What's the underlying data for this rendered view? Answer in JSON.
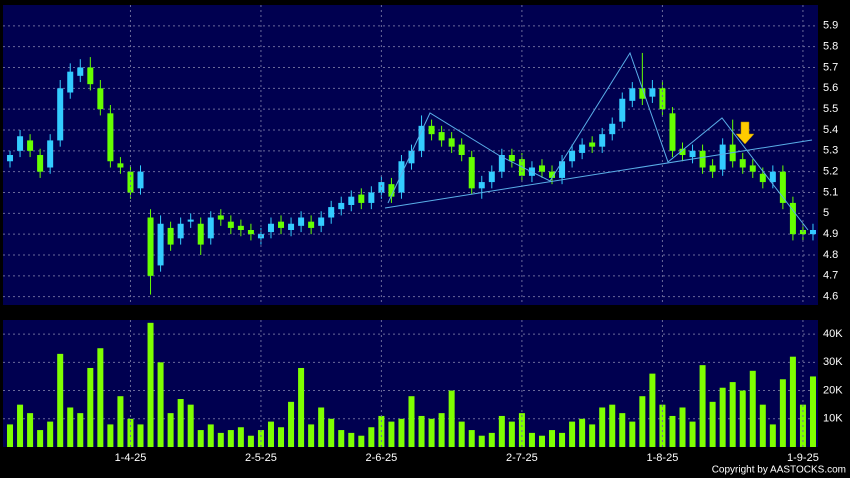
{
  "chart_data": [
    {
      "type": "candlestick",
      "up_color": "#33ccff",
      "down_color": "#66ff00",
      "open": [
        5.25,
        5.3,
        5.35,
        5.28,
        5.22,
        5.35,
        5.58,
        5.66,
        5.7,
        5.6,
        5.48,
        5.24,
        5.2,
        5.12,
        4.98,
        4.75,
        4.93,
        4.88,
        4.96,
        4.95,
        4.88,
        4.99,
        4.96,
        4.94,
        4.92,
        4.88,
        4.91,
        4.96,
        4.92,
        4.94,
        4.96,
        4.94,
        4.98,
        5.02,
        5.04,
        5.09,
        5.05,
        5.1,
        5.14,
        5.1,
        5.24,
        5.3,
        5.42,
        5.39,
        5.36,
        5.33,
        5.27,
        5.12,
        5.15,
        5.2,
        5.28,
        5.26,
        5.18,
        5.23,
        5.2,
        5.17,
        5.25,
        5.29,
        5.34,
        5.32,
        5.38,
        5.44,
        5.54,
        5.6,
        5.56,
        5.6,
        5.48,
        5.31,
        5.27,
        5.3,
        5.23,
        5.21,
        5.33,
        5.26,
        5.23,
        5.19,
        5.15,
        5.2,
        5.05,
        4.92,
        4.9
      ],
      "high": [
        5.3,
        5.4,
        5.38,
        5.31,
        5.38,
        5.64,
        5.72,
        5.74,
        5.75,
        5.64,
        5.52,
        5.27,
        5.23,
        5.23,
        5.02,
        4.99,
        4.96,
        4.98,
        5.0,
        4.98,
        5.01,
        5.02,
        4.99,
        4.97,
        4.95,
        4.93,
        4.98,
        4.99,
        4.98,
        5.01,
        4.99,
        5.01,
        5.06,
        5.08,
        5.11,
        5.12,
        5.13,
        5.18,
        5.17,
        5.28,
        5.33,
        5.47,
        5.45,
        5.42,
        5.39,
        5.36,
        5.3,
        5.18,
        5.23,
        5.31,
        5.31,
        5.29,
        5.25,
        5.26,
        5.23,
        5.28,
        5.33,
        5.36,
        5.37,
        5.41,
        5.46,
        5.58,
        5.63,
        5.77,
        5.64,
        5.63,
        5.51,
        5.34,
        5.33,
        5.33,
        5.26,
        5.36,
        5.45,
        5.29,
        5.26,
        5.22,
        5.23,
        5.23,
        5.08,
        4.95,
        4.95
      ],
      "low": [
        5.22,
        5.27,
        5.27,
        5.17,
        5.19,
        5.32,
        5.55,
        5.63,
        5.59,
        5.47,
        5.22,
        5.19,
        5.07,
        5.09,
        4.61,
        4.72,
        4.82,
        4.85,
        4.93,
        4.8,
        4.85,
        4.94,
        4.9,
        4.89,
        4.87,
        4.85,
        4.88,
        4.9,
        4.89,
        4.91,
        4.9,
        4.91,
        4.95,
        4.99,
        5.01,
        5.02,
        5.02,
        5.07,
        5.05,
        5.07,
        5.21,
        5.27,
        5.35,
        5.32,
        5.29,
        5.25,
        5.09,
        5.07,
        5.12,
        5.17,
        5.22,
        5.15,
        5.15,
        5.17,
        5.14,
        5.14,
        5.22,
        5.26,
        5.29,
        5.29,
        5.35,
        5.41,
        5.51,
        5.52,
        5.53,
        5.47,
        5.27,
        5.25,
        5.24,
        5.19,
        5.17,
        5.18,
        5.22,
        5.19,
        5.17,
        5.12,
        5.12,
        5.02,
        4.87,
        4.87,
        4.87
      ],
      "close": [
        5.28,
        5.37,
        5.3,
        5.2,
        5.35,
        5.6,
        5.68,
        5.7,
        5.62,
        5.5,
        5.25,
        5.22,
        5.1,
        5.2,
        4.7,
        4.95,
        4.85,
        4.95,
        4.97,
        4.85,
        4.98,
        4.97,
        4.93,
        4.92,
        4.9,
        4.9,
        4.95,
        4.93,
        4.95,
        4.98,
        4.93,
        4.98,
        5.03,
        5.05,
        5.08,
        5.05,
        5.1,
        5.15,
        5.08,
        5.25,
        5.3,
        5.42,
        5.38,
        5.35,
        5.32,
        5.28,
        5.12,
        5.15,
        5.2,
        5.28,
        5.25,
        5.18,
        5.22,
        5.2,
        5.17,
        5.25,
        5.3,
        5.33,
        5.32,
        5.38,
        5.43,
        5.55,
        5.6,
        5.55,
        5.6,
        5.5,
        5.3,
        5.28,
        5.3,
        5.22,
        5.2,
        5.33,
        5.25,
        5.22,
        5.2,
        5.15,
        5.2,
        5.05,
        4.9,
        4.9,
        4.92
      ],
      "ylim": [
        4.56,
        6.0
      ],
      "yticks": [
        4.6,
        4.7,
        4.8,
        4.9,
        5,
        5.1,
        5.2,
        5.3,
        5.4,
        5.5,
        5.6,
        5.7,
        5.8,
        5.9
      ],
      "grid": true
    },
    {
      "type": "bar",
      "color": "#7fff00",
      "categories": [
        null,
        null,
        null,
        null,
        null,
        null,
        null,
        null,
        null,
        null,
        null,
        null,
        "1-4-25",
        null,
        null,
        null,
        null,
        null,
        null,
        null,
        null,
        null,
        null,
        null,
        null,
        "2-5-25",
        null,
        null,
        null,
        null,
        null,
        null,
        null,
        null,
        null,
        null,
        null,
        "2-6-25",
        null,
        null,
        null,
        null,
        null,
        null,
        null,
        null,
        null,
        null,
        null,
        null,
        null,
        "2-7-25",
        null,
        null,
        null,
        null,
        null,
        null,
        null,
        null,
        null,
        null,
        null,
        null,
        null,
        "1-8-25",
        null,
        null,
        null,
        null,
        null,
        null,
        null,
        null,
        null,
        null,
        null,
        null,
        null,
        "1-9-25",
        null
      ],
      "values": [
        8000,
        15000,
        12000,
        6000,
        9000,
        33000,
        14000,
        12000,
        28000,
        35000,
        8000,
        18000,
        10000,
        8000,
        44000,
        30000,
        12000,
        17000,
        15000,
        6000,
        8000,
        5000,
        6000,
        7000,
        4000,
        6000,
        9000,
        7000,
        16000,
        28000,
        8000,
        14000,
        10000,
        6000,
        5000,
        4000,
        7000,
        11000,
        9000,
        10000,
        18000,
        11000,
        10000,
        12000,
        20000,
        9000,
        6000,
        4000,
        5000,
        11000,
        9000,
        12000,
        5000,
        4000,
        6000,
        5000,
        9000,
        10000,
        8000,
        14000,
        15000,
        12000,
        9000,
        18000,
        26000,
        15000,
        11000,
        14000,
        9000,
        29000,
        16000,
        21000,
        23000,
        20000,
        27000,
        15000,
        8000,
        24000,
        32000,
        15000,
        25000
      ],
      "ylim": [
        0,
        45000
      ],
      "yticks": [
        {
          "value": 10000,
          "label": "10K"
        },
        {
          "value": 20000,
          "label": "20K"
        },
        {
          "value": 30000,
          "label": "30K"
        },
        {
          "value": 40000,
          "label": "40K"
        }
      ],
      "grid": true
    }
  ],
  "footer": "Copyright by AASTOCKS.com"
}
